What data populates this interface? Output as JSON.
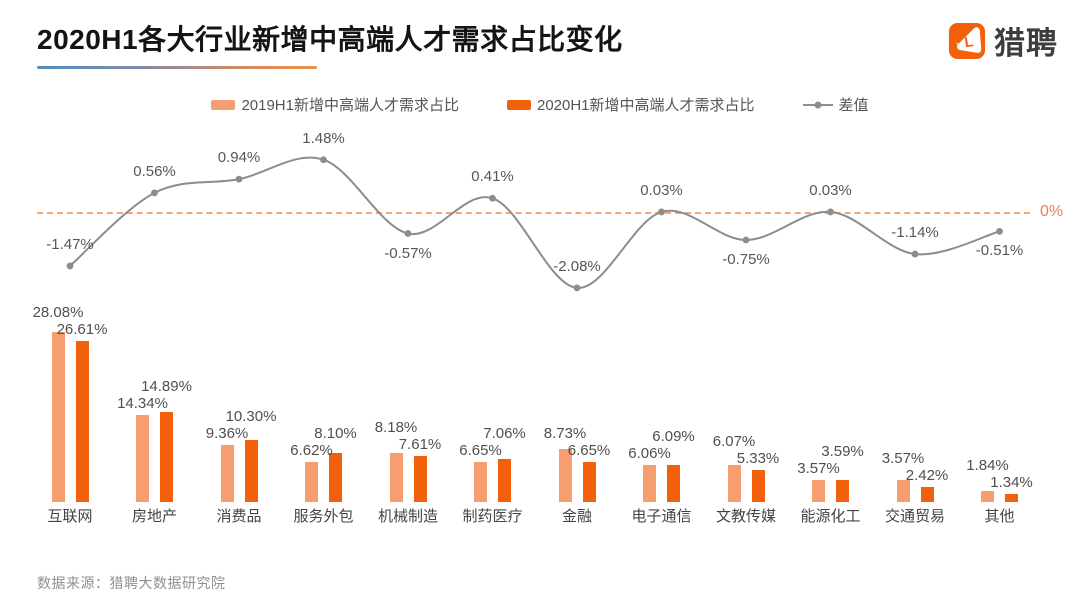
{
  "header": {
    "title": "2020H1各大行业新增中高端人才需求占比变化",
    "brand_name": "猎聘"
  },
  "chart_data": {
    "type": "bar",
    "subtype": "grouped bars with difference line",
    "title": "2020H1各大行业新增中高端人才需求占比变化",
    "categories": [
      "互联网",
      "房地产",
      "消费品",
      "服务外包",
      "机械制造",
      "制药医疗",
      "金融",
      "电子通信",
      "文教传媒",
      "能源化工",
      "交通贸易",
      "其他"
    ],
    "series": [
      {
        "name": "2019H1新增中高端人才需求占比",
        "type": "bar",
        "color": "#F79E71",
        "values": [
          28.08,
          14.34,
          9.36,
          6.62,
          8.18,
          6.65,
          8.73,
          6.06,
          6.07,
          3.57,
          3.57,
          1.84
        ]
      },
      {
        "name": "2020H1新增中高端人才需求占比",
        "type": "bar",
        "color": "#F2600C",
        "values": [
          26.61,
          14.89,
          10.3,
          8.1,
          7.61,
          7.06,
          6.65,
          6.09,
          5.33,
          3.59,
          2.42,
          1.34
        ]
      },
      {
        "name": "差值",
        "type": "line",
        "color": "#8F8C8A",
        "values": [
          -1.47,
          0.56,
          0.94,
          1.48,
          -0.57,
          0.41,
          -2.08,
          0.03,
          -0.75,
          0.03,
          -1.14,
          -0.51
        ],
        "label_side": [
          "above",
          "above",
          "above",
          "above",
          "below",
          "above",
          "above",
          "above",
          "below",
          "above",
          "above",
          "below"
        ]
      }
    ],
    "value_suffix": "%",
    "zero_line": {
      "label": "0%",
      "label_color": "#E97E5B",
      "dash_color": "#F0995F",
      "style": "dashed"
    },
    "legend_position": "top",
    "grid": false,
    "bar_ylim": [
      0,
      30
    ],
    "line_ylim": [
      -2.5,
      2.0
    ]
  },
  "footer": {
    "source": "数据来源：猎聘大数据研究院"
  }
}
